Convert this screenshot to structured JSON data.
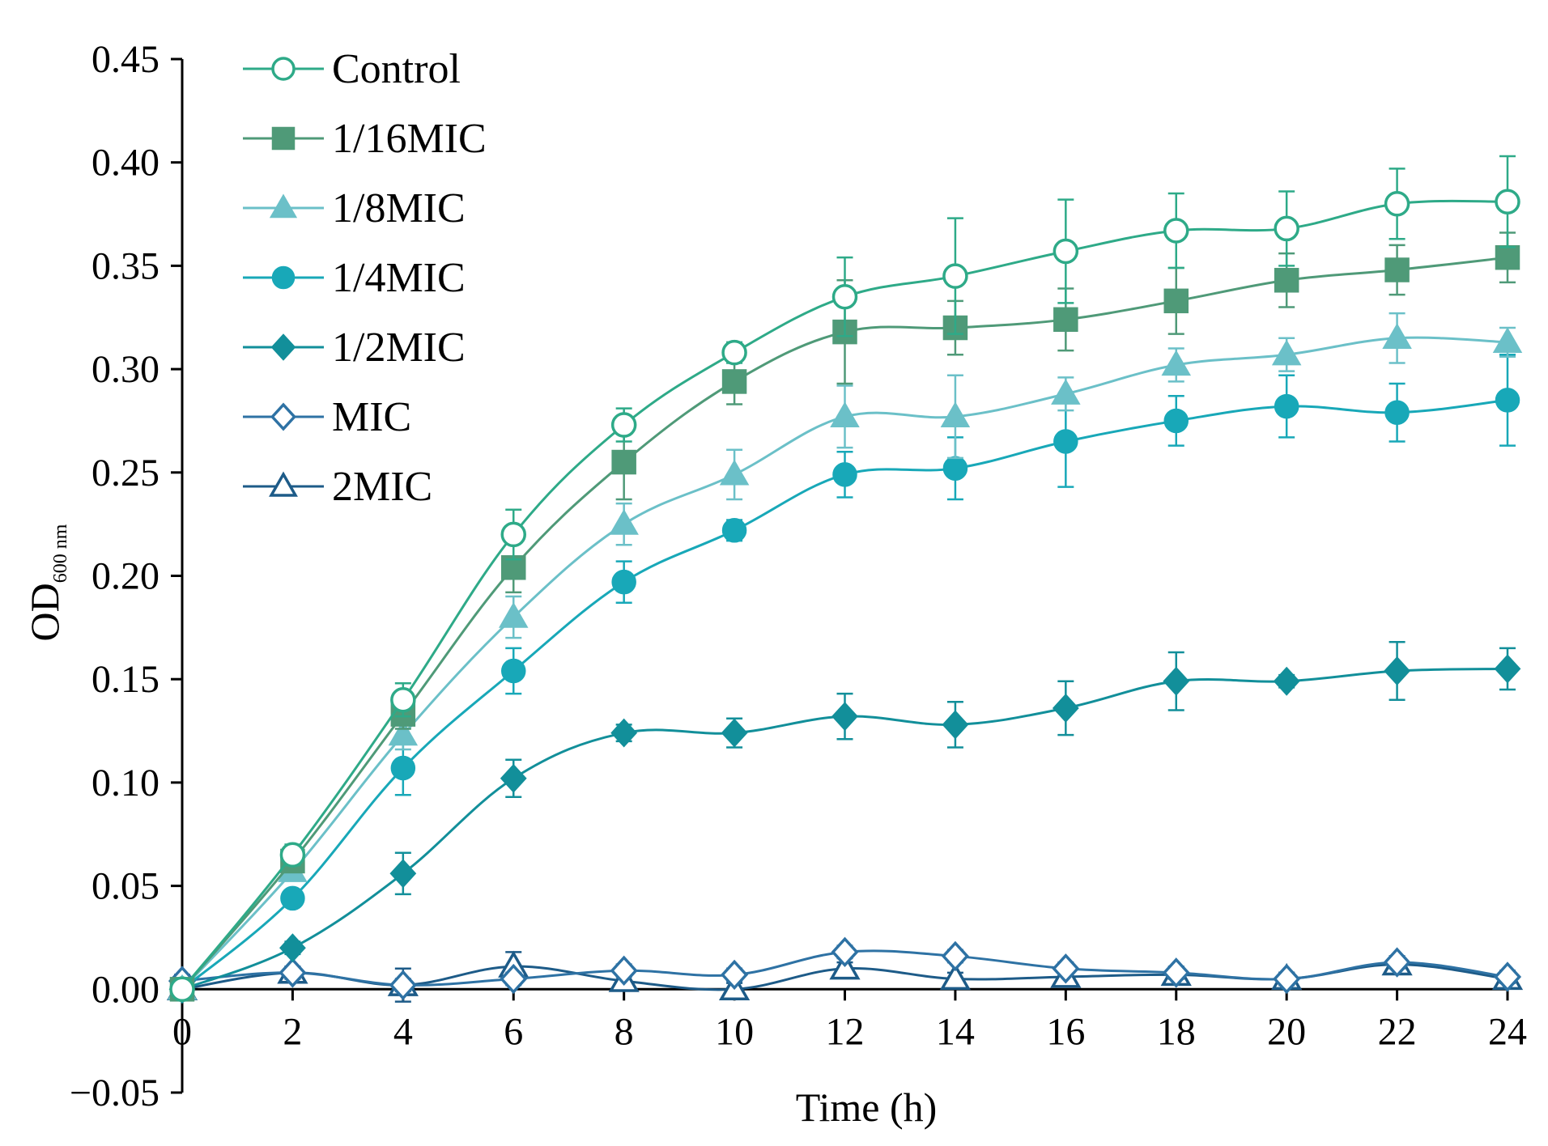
{
  "chart_data": {
    "type": "line",
    "title": "",
    "xlabel": "Time (h)",
    "ylabel": {
      "main": "OD",
      "subscript": "600 nm"
    },
    "x": [
      0,
      2,
      4,
      6,
      8,
      10,
      12,
      14,
      16,
      18,
      20,
      22,
      24
    ],
    "xlim": [
      0,
      24
    ],
    "ylim": [
      -0.05,
      0.45
    ],
    "xticks": [
      "0",
      "2",
      "4",
      "6",
      "8",
      "10",
      "12",
      "14",
      "16",
      "18",
      "20",
      "22",
      "24"
    ],
    "yticks": [
      "−0.05",
      "0.00",
      "0.05",
      "0.10",
      "0.15",
      "0.20",
      "0.25",
      "0.30",
      "0.35",
      "0.40",
      "0.45"
    ],
    "ytick_values": [
      -0.05,
      0.0,
      0.05,
      0.1,
      0.15,
      0.2,
      0.25,
      0.3,
      0.35,
      0.4,
      0.45
    ],
    "grid": false,
    "legend_position": "top-left",
    "series": [
      {
        "name": "Control",
        "color": "#2eaa88",
        "marker": "circle-open",
        "values": [
          0.0,
          0.065,
          0.14,
          0.22,
          0.273,
          0.308,
          0.335,
          0.345,
          0.357,
          0.367,
          0.368,
          0.38,
          0.381
        ],
        "errors": [
          0.002,
          0.005,
          0.008,
          0.012,
          0.008,
          0.005,
          0.019,
          0.028,
          0.025,
          0.018,
          0.018,
          0.017,
          0.022
        ]
      },
      {
        "name": "1/16MIC",
        "color": "#4f9a78",
        "marker": "square",
        "values": [
          0.0,
          0.062,
          0.133,
          0.204,
          0.255,
          0.294,
          0.318,
          0.32,
          0.324,
          0.333,
          0.343,
          0.348,
          0.354
        ],
        "errors": [
          0.002,
          0.005,
          0.007,
          0.012,
          0.018,
          0.011,
          0.025,
          0.013,
          0.015,
          0.016,
          0.013,
          0.012,
          0.012
        ]
      },
      {
        "name": "1/8MIC",
        "color": "#6bc0c8",
        "marker": "triangle",
        "values": [
          0.0,
          0.057,
          0.123,
          0.18,
          0.225,
          0.249,
          0.277,
          0.277,
          0.288,
          0.302,
          0.307,
          0.315,
          0.313
        ],
        "errors": [
          0.002,
          0.004,
          0.007,
          0.01,
          0.01,
          0.012,
          0.015,
          0.02,
          0.008,
          0.008,
          0.008,
          0.012,
          0.007
        ]
      },
      {
        "name": "1/4MIC",
        "color": "#18a8b8",
        "marker": "circle",
        "values": [
          0.0,
          0.044,
          0.107,
          0.154,
          0.197,
          0.222,
          0.249,
          0.252,
          0.265,
          0.275,
          0.282,
          0.279,
          0.285
        ],
        "errors": [
          0.002,
          0.004,
          0.013,
          0.011,
          0.01,
          0.005,
          0.011,
          0.015,
          0.022,
          0.012,
          0.015,
          0.014,
          0.022
        ]
      },
      {
        "name": "1/2MIC",
        "color": "#128f9a",
        "marker": "diamond",
        "values": [
          0.0,
          0.02,
          0.056,
          0.102,
          0.124,
          0.124,
          0.132,
          0.128,
          0.136,
          0.149,
          0.149,
          0.154,
          0.155
        ],
        "errors": [
          0.002,
          0.003,
          0.01,
          0.009,
          0.004,
          0.007,
          0.011,
          0.011,
          0.013,
          0.014,
          0.003,
          0.014,
          0.01
        ]
      },
      {
        "name": "MIC",
        "color": "#2e72a4",
        "marker": "diamond-open",
        "values": [
          0.004,
          0.008,
          0.002,
          0.005,
          0.009,
          0.007,
          0.018,
          0.016,
          0.01,
          0.008,
          0.005,
          0.013,
          0.006
        ],
        "errors": [
          0.003,
          0.003,
          0.003,
          0.003,
          0.003,
          0.003,
          0.003,
          0.003,
          0.003,
          0.003,
          0.003,
          0.003,
          0.003
        ]
      },
      {
        "name": "2MIC",
        "color": "#1d5b88",
        "marker": "triangle-open",
        "values": [
          0.0,
          0.008,
          0.002,
          0.011,
          0.004,
          0.0,
          0.01,
          0.005,
          0.006,
          0.007,
          0.005,
          0.012,
          0.005
        ],
        "errors": [
          0.003,
          0.003,
          0.008,
          0.007,
          0.003,
          0.003,
          0.003,
          0.003,
          0.003,
          0.003,
          0.003,
          0.003,
          0.003
        ]
      }
    ]
  }
}
